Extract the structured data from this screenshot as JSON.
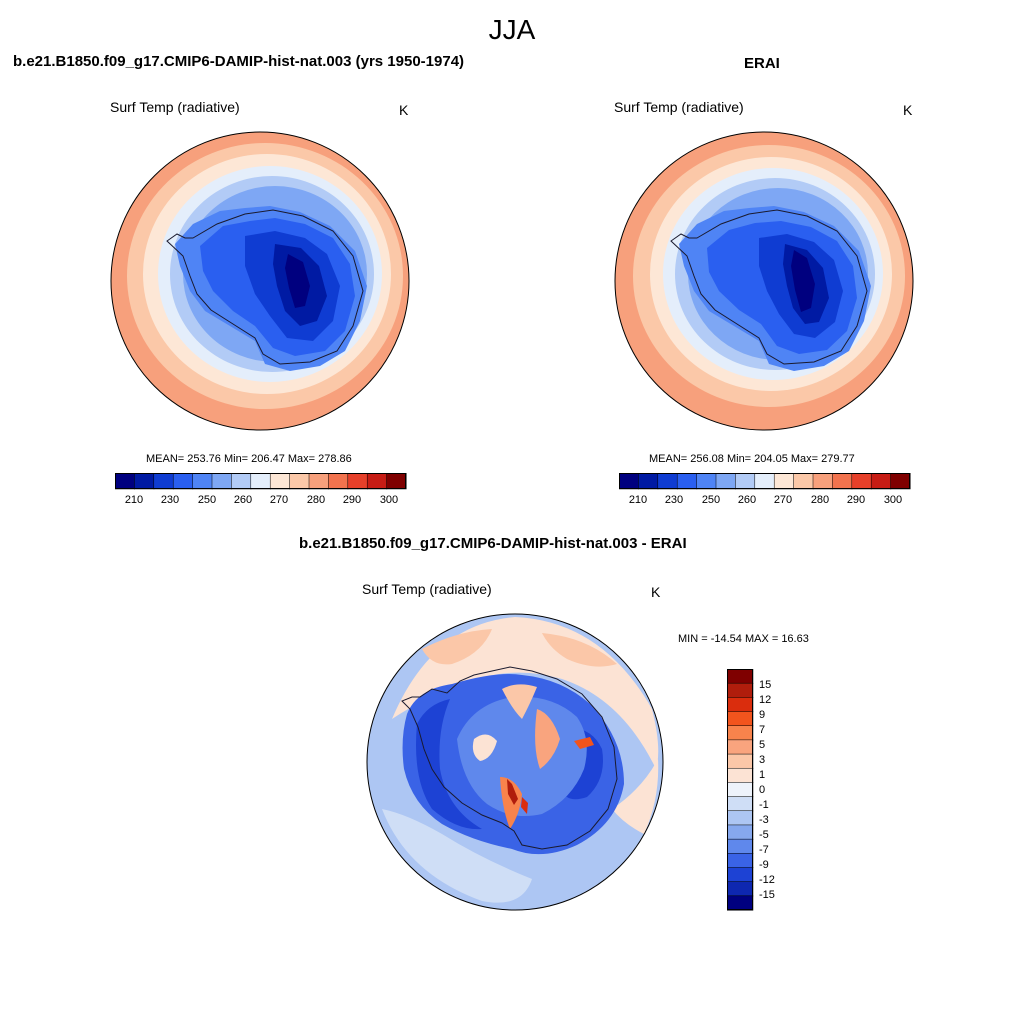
{
  "page": {
    "title": "JJA"
  },
  "colors": {
    "abs_levels": [
      "#00007f",
      "#001aa3",
      "#0f3cd2",
      "#2a5ff0",
      "#4f84f5",
      "#7ea7f4",
      "#b2cbf6",
      "#e4eefb",
      "#fde7d6",
      "#fbc8a8",
      "#f7a07c",
      "#f2734e",
      "#e6402a",
      "#c71c14",
      "#7f0000"
    ],
    "diff_levels": [
      "#7f0000",
      "#b01d0c",
      "#da2d0d",
      "#f2541d",
      "#f8834c",
      "#f9a47e",
      "#fbc7a8",
      "#fce3d4",
      "#eef3fb",
      "#cfdef6",
      "#adc6f3",
      "#86a8ee",
      "#5f88ec",
      "#3a63e6",
      "#1d42d4",
      "#0e27b0",
      "#00007f"
    ],
    "coast": "#1a1a2e",
    "border": "#000000"
  },
  "panels": {
    "left": {
      "title": "b.e21.B1850.f09_g17.CMIP6-DAMIP-hist-nat.003 (yrs 1950-1974)",
      "variable": "Surf Temp (radiative)",
      "units": "K",
      "stats": "MEAN= 253.76  Min= 206.47  Max= 278.86"
    },
    "right": {
      "title": "ERAI",
      "variable": "Surf Temp (radiative)",
      "units": "K",
      "stats": "MEAN= 256.08  Min= 204.05  Max= 279.77"
    },
    "diff": {
      "title": "b.e21.B1850.f09_g17.CMIP6-DAMIP-hist-nat.003 - ERAI",
      "variable": "Surf Temp (radiative)",
      "units": "K",
      "stats": "MIN = -14.54 MAX =  16.63"
    }
  },
  "chart_data": [
    {
      "type": "heatmap",
      "projection": "south-polar-stereographic",
      "title": "b.e21.B1850.f09_g17.CMIP6-DAMIP-hist-nat.003 (yrs 1950-1974)",
      "variable": "Surf Temp (radiative)",
      "units": "K",
      "mean": 253.76,
      "min": 206.47,
      "max": 278.86,
      "colorbar_levels": [
        210,
        220,
        230,
        240,
        250,
        255,
        260,
        265,
        270,
        275,
        280,
        285,
        290,
        295,
        300
      ],
      "colorbar_tick_labels": [
        "210",
        "230",
        "250",
        "260",
        "270",
        "280",
        "290",
        "300"
      ]
    },
    {
      "type": "heatmap",
      "projection": "south-polar-stereographic",
      "title": "ERAI",
      "variable": "Surf Temp (radiative)",
      "units": "K",
      "mean": 256.08,
      "min": 204.05,
      "max": 279.77,
      "colorbar_levels": [
        210,
        220,
        230,
        240,
        250,
        255,
        260,
        265,
        270,
        275,
        280,
        285,
        290,
        295,
        300
      ],
      "colorbar_tick_labels": [
        "210",
        "230",
        "250",
        "260",
        "270",
        "280",
        "290",
        "300"
      ]
    },
    {
      "type": "heatmap",
      "projection": "south-polar-stereographic",
      "title": "b.e21.B1850.f09_g17.CMIP6-DAMIP-hist-nat.003 - ERAI",
      "variable": "Surf Temp (radiative)",
      "units": "K",
      "min": -14.54,
      "max": 16.63,
      "colorbar_tick_labels": [
        "15",
        "12",
        "9",
        "7",
        "5",
        "3",
        "1",
        "0",
        "-1",
        "-3",
        "-5",
        "-7",
        "-9",
        "-12",
        "-15"
      ]
    }
  ]
}
